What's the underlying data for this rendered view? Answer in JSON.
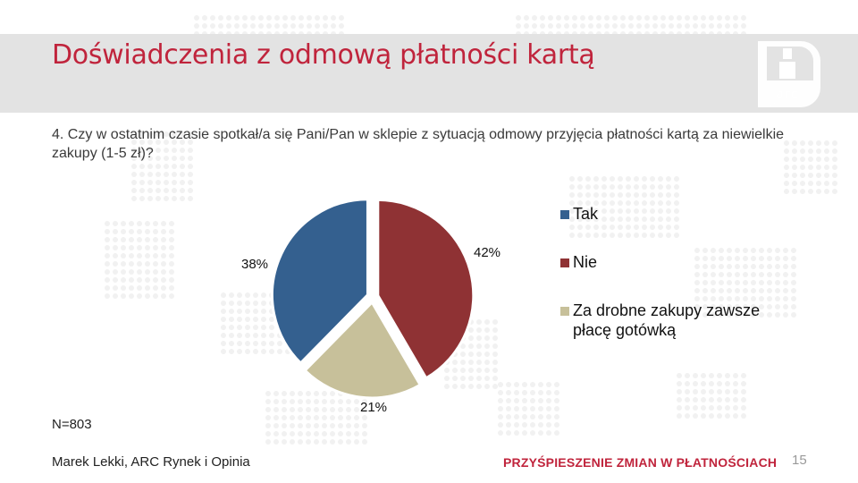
{
  "header": {
    "title": "Doświadczenia z odmową płatności kartą",
    "logo_text": "arc",
    "logo_subtext": "rynek i opinia"
  },
  "question": {
    "line1": "4. Czy w ostatnim czasie spotkał/a się Pani/Pan w sklepie z sytuacją odmowy przyjęcia płatności kartą za niewielkie",
    "line2": "zakupy (1-5 zł)?"
  },
  "chart_data": {
    "type": "pie",
    "title": "",
    "categories": [
      "Tak",
      "Nie",
      "Za drobne zakupy zawsze płacę gotówką"
    ],
    "values": [
      38,
      42,
      21
    ],
    "value_labels": [
      "38%",
      "42%",
      "21%"
    ],
    "colors": [
      "#34608f",
      "#8f3234",
      "#c7c09a"
    ],
    "legend_position": "right",
    "legend_lines": [
      [
        "Tak"
      ],
      [
        "Nie"
      ],
      [
        "Za drobne zakupy zawsze",
        "płacę gotówką"
      ]
    ],
    "exploded": true
  },
  "footer": {
    "sample": "N=803",
    "author": "Marek Lekki, ARC Rynek i Opinia",
    "tagline": "PRZYŚPIESZENIE ZMIAN W PŁATNOŚCIACH",
    "page_number": "15"
  },
  "colors": {
    "title": "#c0243c",
    "band": "#e3e3e3",
    "dots": "#f1f1f1"
  }
}
